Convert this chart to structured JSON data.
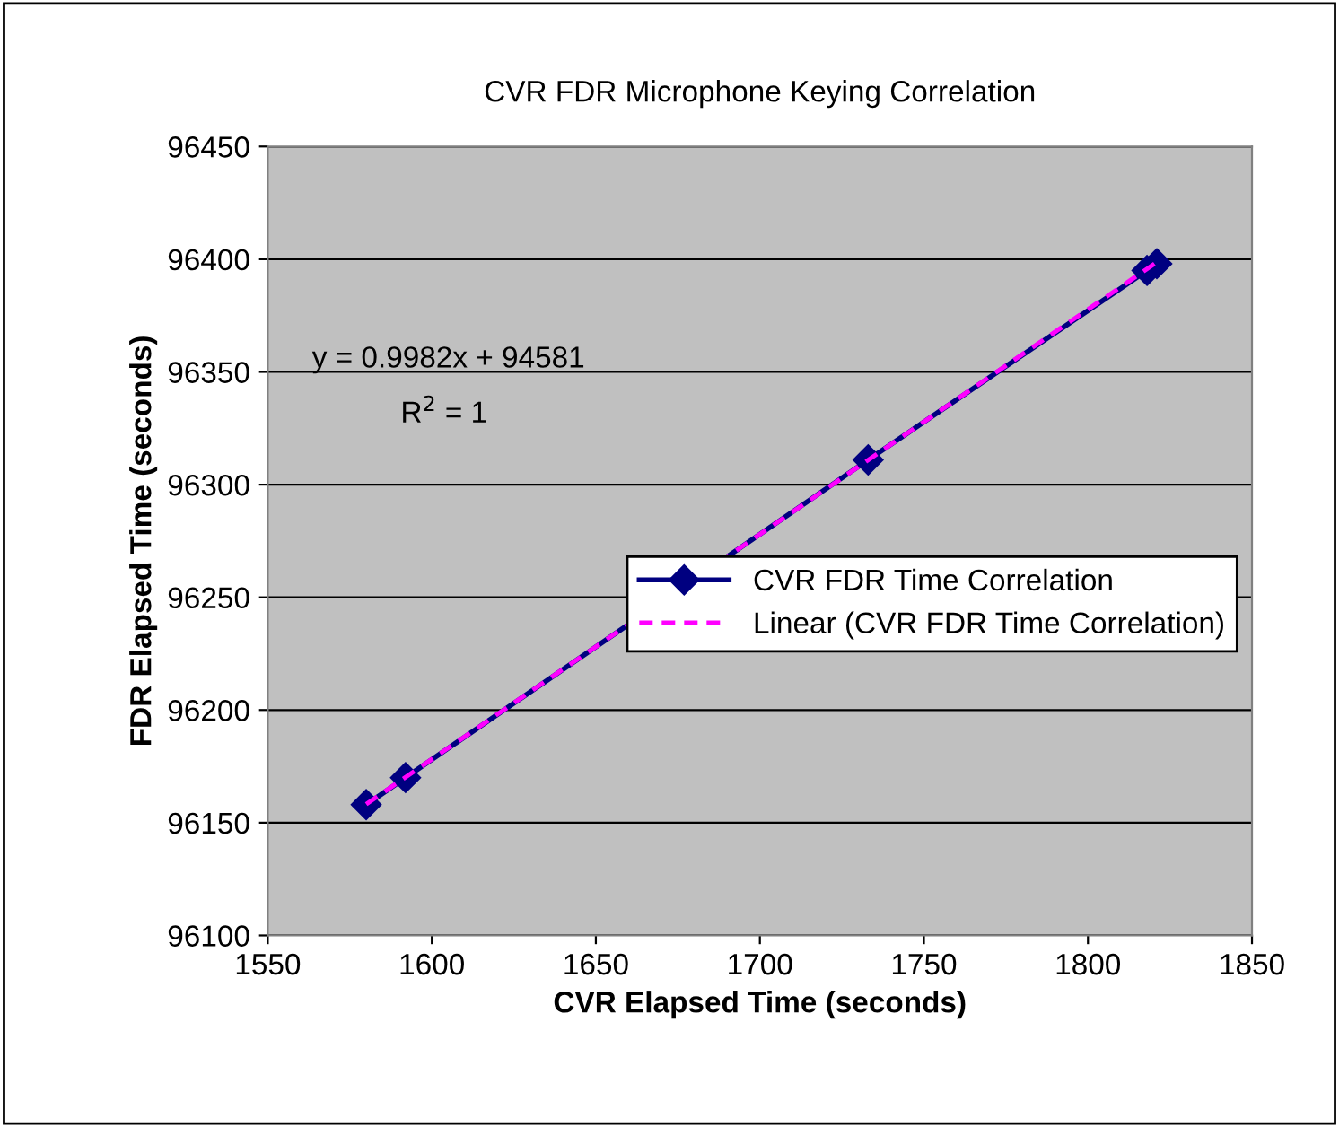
{
  "chart_data": {
    "type": "line",
    "title": "CVR FDR Microphone Keying Correlation",
    "xlabel": "CVR Elapsed Time (seconds)",
    "ylabel": "FDR Elapsed Time (seconds)",
    "x": [
      1580,
      1592,
      1733,
      1818,
      1821
    ],
    "series": [
      {
        "name": "CVR FDR Time Correlation",
        "color": "#000080",
        "values": [
          96158,
          96170,
          96311,
          96395,
          96398
        ],
        "marker": "diamond",
        "line_style": "solid"
      },
      {
        "name": "Linear (CVR FDR Time Correlation)",
        "color": "#ff00ff",
        "type": "line",
        "x": [
          1580,
          1821
        ],
        "values": [
          96158.2,
          96398.7
        ],
        "marker": "none",
        "line_style": "dashed"
      }
    ],
    "annotations": [
      "y = 0.9982x + 94581",
      "R$^{2}$ = 1"
    ],
    "xlim": [
      1550,
      1850
    ],
    "xticks": [
      1550,
      1600,
      1650,
      1700,
      1750,
      1800,
      1850
    ],
    "ylim": [
      96100,
      96450
    ],
    "yticks": [
      96100,
      96150,
      96200,
      96250,
      96300,
      96350,
      96400,
      96450
    ],
    "grid": "y",
    "legend": "center right"
  }
}
